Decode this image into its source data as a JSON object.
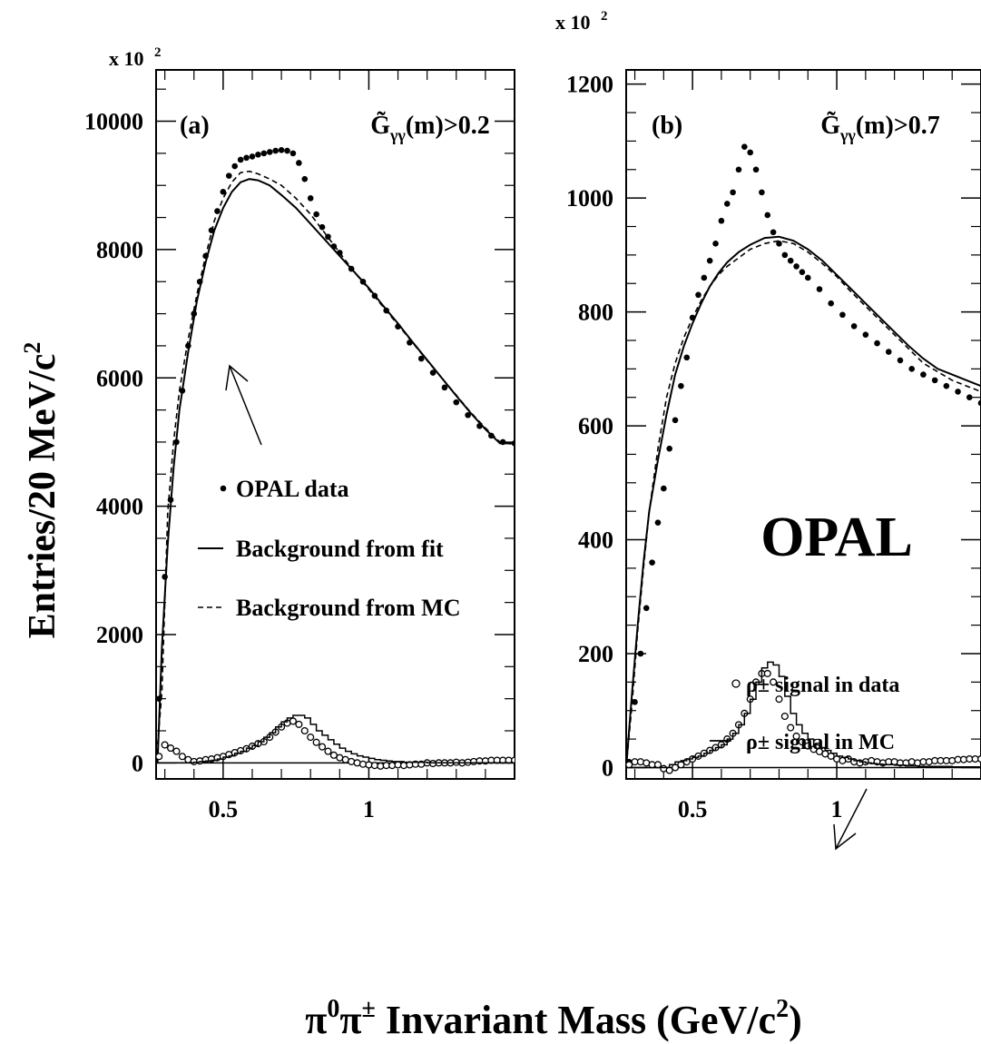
{
  "figure": {
    "xlabel_main": "π",
    "xlabel_sup1": "0",
    "xlabel_mid": "π",
    "xlabel_sup2": "±",
    "xlabel_rest": " Invariant Mass (GeV/c",
    "xlabel_sup3": "2",
    "xlabel_end": ")",
    "ylabel": "Entries/20 MeV/c",
    "ylabel_sup": "2"
  },
  "chart_data": [
    {
      "type": "scatter",
      "panel": "(a)",
      "cut_label": "G̃γγ(m)>0.2",
      "multiplier": "x 10 2",
      "xlim": [
        0.27,
        1.5
      ],
      "ylim": [
        -250,
        10800
      ],
      "x_ticks": [
        0.5,
        1
      ],
      "x_tick_labels": [
        "0.5",
        "1"
      ],
      "y_ticks": [
        0,
        2000,
        4000,
        6000,
        8000,
        10000
      ],
      "y_tick_labels": [
        "0",
        "2000",
        "4000",
        "6000",
        "8000",
        "10000"
      ],
      "legend": {
        "data": "OPAL data",
        "fit": "Background from fit",
        "mc": "Background from MC"
      },
      "series": [
        {
          "name": "OPAL data",
          "style": "filled-dots",
          "x": [
            0.28,
            0.3,
            0.32,
            0.34,
            0.36,
            0.38,
            0.4,
            0.42,
            0.44,
            0.46,
            0.48,
            0.5,
            0.52,
            0.54,
            0.56,
            0.58,
            0.6,
            0.62,
            0.64,
            0.66,
            0.68,
            0.7,
            0.72,
            0.74,
            0.76,
            0.78,
            0.8,
            0.82,
            0.84,
            0.86,
            0.88,
            0.9,
            0.94,
            0.98,
            1.02,
            1.06,
            1.1,
            1.14,
            1.18,
            1.22,
            1.26,
            1.3,
            1.34,
            1.38,
            1.42,
            1.46,
            1.5
          ],
          "y": [
            1000,
            2900,
            4100,
            5000,
            5800,
            6500,
            7000,
            7500,
            7900,
            8300,
            8600,
            8900,
            9150,
            9300,
            9400,
            9430,
            9450,
            9480,
            9500,
            9520,
            9540,
            9550,
            9540,
            9500,
            9350,
            9100,
            8800,
            8550,
            8350,
            8200,
            8050,
            7950,
            7700,
            7500,
            7280,
            7050,
            6800,
            6550,
            6300,
            6080,
            5850,
            5620,
            5420,
            5250,
            5100,
            5000,
            4980
          ]
        },
        {
          "name": "Background from fit",
          "style": "solid",
          "x": [
            0.275,
            0.29,
            0.31,
            0.33,
            0.35,
            0.38,
            0.41,
            0.44,
            0.47,
            0.5,
            0.53,
            0.56,
            0.59,
            0.62,
            0.66,
            0.7,
            0.75,
            0.8,
            0.85,
            0.9,
            0.95,
            1.0,
            1.05,
            1.1,
            1.15,
            1.2,
            1.25,
            1.3,
            1.35,
            1.4,
            1.45,
            1.5
          ],
          "y": [
            0,
            1800,
            3400,
            4600,
            5500,
            6400,
            7200,
            7800,
            8300,
            8650,
            8900,
            9050,
            9100,
            9080,
            9000,
            8850,
            8650,
            8400,
            8150,
            7900,
            7650,
            7400,
            7120,
            6850,
            6560,
            6280,
            6000,
            5720,
            5450,
            5200,
            4980,
            4980
          ]
        },
        {
          "name": "Background from MC",
          "style": "dashed",
          "x": [
            0.27,
            0.29,
            0.31,
            0.33,
            0.35,
            0.38,
            0.41,
            0.44,
            0.47,
            0.5,
            0.53,
            0.56,
            0.59,
            0.62,
            0.66,
            0.7,
            0.75,
            0.8,
            0.85,
            0.9,
            0.95,
            1.0,
            1.05,
            1.1,
            1.15,
            1.2,
            1.25,
            1.3,
            1.35,
            1.4,
            1.45,
            1.5
          ],
          "y": [
            0,
            1100,
            3900,
            5000,
            5800,
            6600,
            7300,
            7900,
            8450,
            8800,
            9050,
            9200,
            9220,
            9180,
            9100,
            9000,
            8800,
            8550,
            8250,
            7950,
            7650,
            7380,
            7100,
            6830,
            6550,
            6270,
            6000,
            5730,
            5460,
            5220,
            5000,
            4960
          ]
        },
        {
          "name": "signal data",
          "style": "open-circles",
          "x": [
            0.28,
            0.3,
            0.32,
            0.34,
            0.36,
            0.38,
            0.4,
            0.42,
            0.44,
            0.46,
            0.48,
            0.5,
            0.52,
            0.54,
            0.56,
            0.58,
            0.6,
            0.62,
            0.64,
            0.66,
            0.68,
            0.7,
            0.72,
            0.74,
            0.76,
            0.78,
            0.8,
            0.82,
            0.84,
            0.86,
            0.88,
            0.9,
            0.92,
            0.94,
            0.96,
            0.98,
            1.0,
            1.02,
            1.04,
            1.06,
            1.08,
            1.1,
            1.12,
            1.14,
            1.16,
            1.18,
            1.2,
            1.22,
            1.24,
            1.26,
            1.28,
            1.3,
            1.32,
            1.34,
            1.36,
            1.38,
            1.4,
            1.42,
            1.44,
            1.46,
            1.48,
            1.5
          ],
          "y": [
            100,
            280,
            230,
            180,
            100,
            50,
            20,
            30,
            50,
            60,
            80,
            100,
            130,
            160,
            190,
            220,
            260,
            300,
            330,
            400,
            480,
            560,
            620,
            650,
            600,
            500,
            400,
            320,
            250,
            180,
            120,
            80,
            50,
            20,
            0,
            -20,
            -30,
            -40,
            -50,
            -40,
            -40,
            -30,
            -40,
            -30,
            -20,
            -20,
            0,
            -10,
            0,
            0,
            0,
            10,
            0,
            10,
            20,
            30,
            30,
            40,
            40,
            40,
            40,
            40
          ]
        },
        {
          "name": "signal MC",
          "style": "histogram",
          "x": [
            0.28,
            0.3,
            0.32,
            0.34,
            0.36,
            0.38,
            0.4,
            0.42,
            0.44,
            0.46,
            0.48,
            0.5,
            0.52,
            0.54,
            0.56,
            0.58,
            0.6,
            0.62,
            0.64,
            0.66,
            0.68,
            0.7,
            0.72,
            0.74,
            0.76,
            0.78,
            0.8,
            0.82,
            0.84,
            0.86,
            0.88,
            0.9,
            0.92,
            0.94,
            0.96,
            0.98,
            1.0,
            1.02,
            1.04,
            1.06,
            1.08,
            1.1,
            1.12,
            1.14,
            1.16,
            1.18,
            1.2,
            1.22,
            1.24,
            1.26,
            1.28,
            1.3,
            1.32,
            1.34,
            1.36,
            1.38,
            1.4,
            1.42,
            1.44,
            1.46,
            1.48
          ],
          "y": [
            0,
            0,
            0,
            0,
            0,
            0,
            10,
            20,
            30,
            40,
            60,
            90,
            110,
            150,
            180,
            230,
            270,
            330,
            400,
            470,
            560,
            640,
            700,
            740,
            740,
            700,
            600,
            500,
            430,
            360,
            290,
            230,
            180,
            140,
            110,
            90,
            70,
            50,
            40,
            30,
            20,
            20,
            10,
            10,
            10,
            10,
            0,
            0,
            0,
            0,
            0,
            0,
            0,
            0,
            0,
            0,
            0,
            0,
            0,
            0,
            0
          ]
        }
      ]
    },
    {
      "type": "scatter",
      "panel": "(b)",
      "cut_label": "G̃γγ(m)>0.7",
      "multiplier": "x 10 2",
      "watermark": "OPAL",
      "xlim": [
        0.27,
        1.5
      ],
      "ylim": [
        -20,
        1225
      ],
      "x_ticks": [
        0.5,
        1
      ],
      "x_tick_labels": [
        "0.5",
        "1"
      ],
      "y_ticks": [
        0,
        200,
        400,
        600,
        800,
        1000,
        1200
      ],
      "y_tick_labels": [
        "0",
        "200",
        "400",
        "600",
        "800",
        "1000",
        "1200"
      ],
      "legend": {
        "signal_data": "ρ± signal in data",
        "signal_mc": "ρ± signal in MC"
      },
      "series": [
        {
          "name": "OPAL data",
          "style": "filled-dots",
          "x": [
            0.28,
            0.3,
            0.32,
            0.34,
            0.36,
            0.38,
            0.4,
            0.42,
            0.44,
            0.46,
            0.48,
            0.5,
            0.52,
            0.54,
            0.56,
            0.58,
            0.6,
            0.62,
            0.64,
            0.66,
            0.68,
            0.7,
            0.72,
            0.74,
            0.76,
            0.78,
            0.8,
            0.82,
            0.84,
            0.86,
            0.88,
            0.9,
            0.94,
            0.98,
            1.02,
            1.06,
            1.1,
            1.14,
            1.18,
            1.22,
            1.26,
            1.3,
            1.34,
            1.38,
            1.42,
            1.46,
            1.5
          ],
          "y": [
            10,
            115,
            200,
            280,
            360,
            430,
            490,
            560,
            610,
            670,
            720,
            790,
            830,
            860,
            890,
            920,
            960,
            990,
            1010,
            1050,
            1090,
            1080,
            1050,
            1010,
            970,
            940,
            920,
            900,
            890,
            880,
            870,
            860,
            840,
            815,
            795,
            775,
            760,
            745,
            730,
            715,
            700,
            690,
            680,
            670,
            660,
            650,
            640
          ]
        },
        {
          "name": "Background from fit",
          "style": "solid",
          "x": [
            0.27,
            0.29,
            0.31,
            0.33,
            0.35,
            0.38,
            0.41,
            0.44,
            0.47,
            0.5,
            0.53,
            0.56,
            0.59,
            0.62,
            0.66,
            0.7,
            0.75,
            0.8,
            0.85,
            0.9,
            0.95,
            1.0,
            1.05,
            1.1,
            1.15,
            1.2,
            1.25,
            1.3,
            1.35,
            1.4,
            1.45,
            1.5
          ],
          "y": [
            0,
            130,
            250,
            360,
            450,
            540,
            620,
            690,
            740,
            780,
            815,
            845,
            868,
            887,
            905,
            918,
            930,
            932,
            925,
            910,
            890,
            865,
            840,
            815,
            790,
            765,
            740,
            718,
            700,
            690,
            680,
            670
          ]
        },
        {
          "name": "Background from MC",
          "style": "dashed",
          "x": [
            0.27,
            0.29,
            0.31,
            0.33,
            0.35,
            0.38,
            0.41,
            0.44,
            0.47,
            0.5,
            0.53,
            0.56,
            0.59,
            0.62,
            0.66,
            0.7,
            0.75,
            0.8,
            0.85,
            0.9,
            0.95,
            1.0,
            1.05,
            1.1,
            1.15,
            1.2,
            1.25,
            1.3,
            1.35,
            1.4,
            1.45,
            1.5
          ],
          "y": [
            0,
            110,
            240,
            350,
            450,
            560,
            650,
            710,
            755,
            790,
            820,
            845,
            865,
            880,
            895,
            910,
            920,
            925,
            920,
            905,
            885,
            862,
            835,
            810,
            785,
            760,
            735,
            710,
            695,
            680,
            670,
            660
          ]
        },
        {
          "name": "signal data",
          "style": "open-circles",
          "x": [
            0.28,
            0.3,
            0.32,
            0.34,
            0.36,
            0.38,
            0.4,
            0.42,
            0.44,
            0.46,
            0.48,
            0.5,
            0.52,
            0.54,
            0.56,
            0.58,
            0.6,
            0.62,
            0.64,
            0.66,
            0.68,
            0.7,
            0.72,
            0.74,
            0.76,
            0.78,
            0.8,
            0.82,
            0.84,
            0.86,
            0.88,
            0.9,
            0.92,
            0.94,
            0.96,
            0.98,
            1.0,
            1.02,
            1.04,
            1.06,
            1.08,
            1.1,
            1.12,
            1.14,
            1.16,
            1.18,
            1.2,
            1.22,
            1.24,
            1.26,
            1.28,
            1.3,
            1.32,
            1.34,
            1.36,
            1.38,
            1.4,
            1.42,
            1.44,
            1.46,
            1.48,
            1.5
          ],
          "y": [
            5,
            10,
            10,
            8,
            5,
            5,
            -2,
            -5,
            0,
            5,
            10,
            15,
            20,
            25,
            30,
            35,
            40,
            50,
            60,
            75,
            95,
            120,
            150,
            165,
            165,
            150,
            120,
            90,
            70,
            55,
            45,
            38,
            32,
            28,
            24,
            20,
            15,
            12,
            15,
            10,
            8,
            10,
            12,
            10,
            8,
            10,
            10,
            8,
            8,
            10,
            8,
            10,
            10,
            12,
            12,
            12,
            12,
            14,
            14,
            15,
            15,
            15
          ]
        },
        {
          "name": "signal MC",
          "style": "histogram",
          "x": [
            0.28,
            0.3,
            0.32,
            0.34,
            0.36,
            0.38,
            0.4,
            0.42,
            0.44,
            0.46,
            0.48,
            0.5,
            0.52,
            0.54,
            0.56,
            0.58,
            0.6,
            0.62,
            0.64,
            0.66,
            0.68,
            0.7,
            0.72,
            0.74,
            0.76,
            0.78,
            0.8,
            0.82,
            0.84,
            0.86,
            0.88,
            0.9,
            0.92,
            0.94,
            0.96,
            0.98,
            1.0,
            1.02,
            1.04,
            1.06,
            1.08,
            1.1,
            1.12,
            1.14,
            1.16,
            1.18,
            1.2,
            1.22,
            1.24,
            1.26,
            1.28,
            1.3,
            1.32,
            1.34,
            1.36,
            1.38,
            1.4,
            1.42,
            1.44,
            1.46,
            1.48
          ],
          "y": [
            0,
            0,
            0,
            0,
            0,
            0,
            0,
            5,
            10,
            12,
            15,
            18,
            20,
            25,
            30,
            35,
            40,
            50,
            60,
            75,
            95,
            120,
            150,
            175,
            185,
            180,
            160,
            125,
            95,
            75,
            60,
            50,
            40,
            35,
            30,
            25,
            20,
            18,
            15,
            12,
            10,
            8,
            7,
            6,
            5,
            5,
            4,
            4,
            3,
            3,
            2,
            2,
            2,
            2,
            2,
            2,
            1,
            1,
            1,
            1,
            1
          ]
        }
      ]
    }
  ]
}
